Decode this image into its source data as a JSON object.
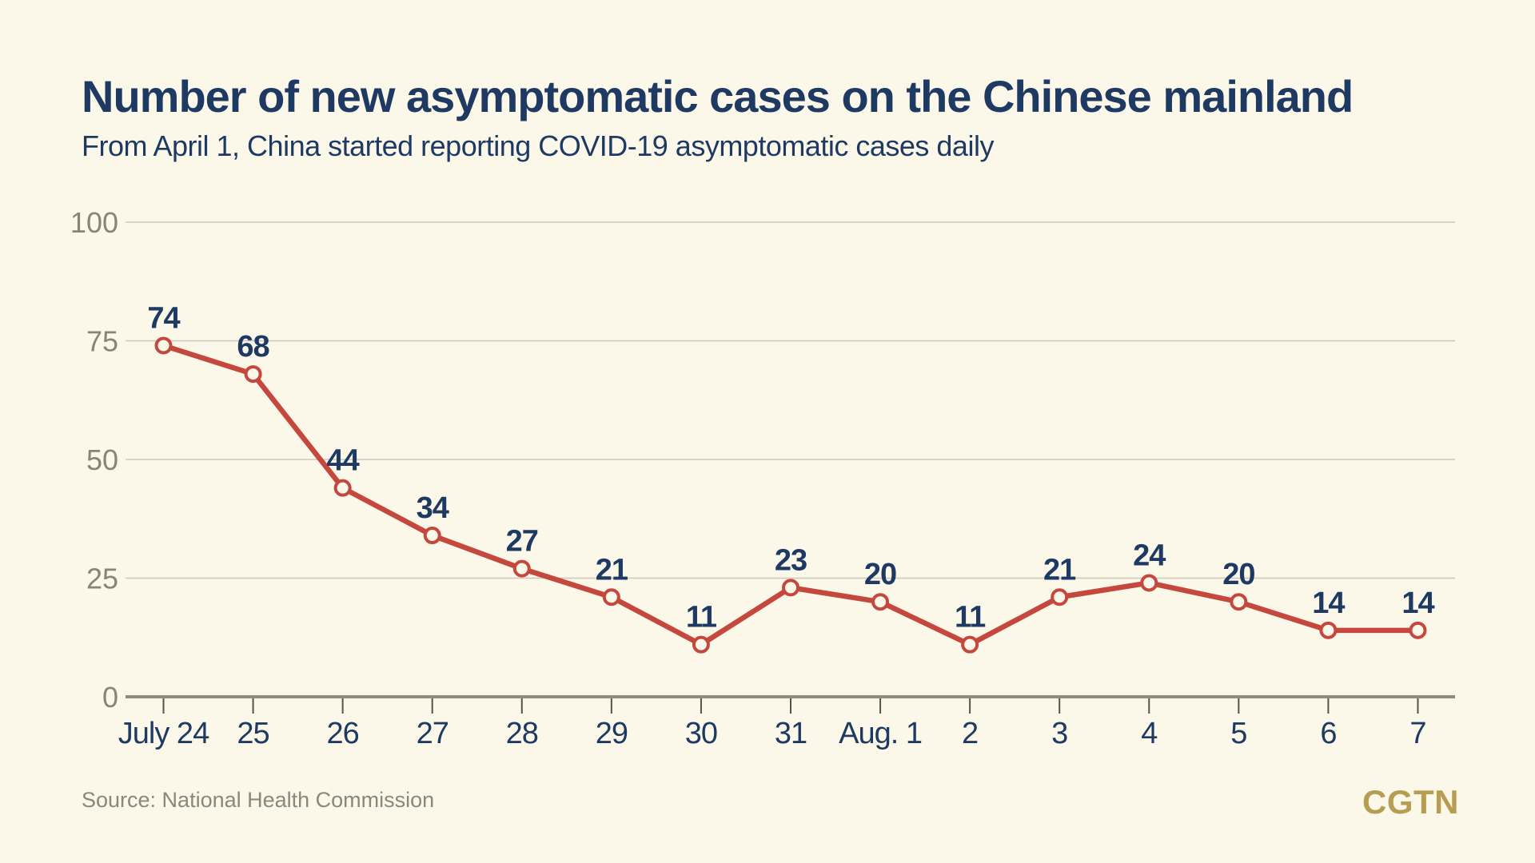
{
  "colors": {
    "background": "#FCF8E9",
    "navy": "#1E3A63",
    "red": "#C5483E",
    "gold": "#B79D52",
    "y_label_gray": "#8A8472",
    "gridline_gray": "#CCC8BA",
    "axis_gray": "#908A7A",
    "source_gray": "#8C867B"
  },
  "header": {
    "title": "Number of new asymptomatic cases on the Chinese mainland",
    "subtitle": "From April 1, China started reporting COVID-19 asymptomatic cases daily"
  },
  "chart_data": {
    "type": "line",
    "title": "Number of new asymptomatic cases on the Chinese mainland",
    "categories": [
      "July 24",
      "25",
      "26",
      "27",
      "28",
      "29",
      "30",
      "31",
      "Aug. 1",
      "2",
      "3",
      "4",
      "5",
      "6",
      "7"
    ],
    "values": [
      74,
      68,
      44,
      34,
      27,
      21,
      11,
      23,
      20,
      11,
      21,
      24,
      20,
      14,
      14
    ],
    "y_ticks": [
      0,
      25,
      50,
      75,
      100
    ],
    "ylim": [
      0,
      100
    ],
    "xlabel": "",
    "ylabel": "",
    "grid": true,
    "legend": "none",
    "line_color": "#C5483E",
    "marker_style": "open-circle",
    "data_label_color": "#1E3A63"
  },
  "footer": {
    "source_label": "Source: National Health Commission",
    "logo_text": "CGTN"
  }
}
